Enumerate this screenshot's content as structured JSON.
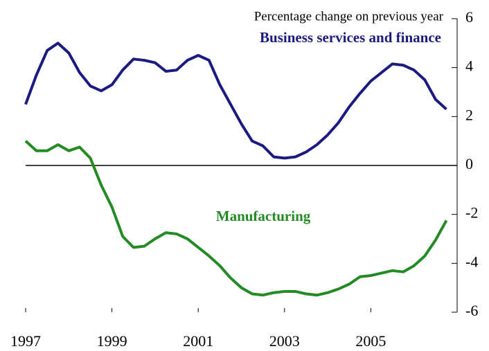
{
  "chart_data": {
    "type": "line",
    "annotations": [
      "Percentage change on previous year"
    ],
    "x": [
      1997,
      1997.25,
      1997.5,
      1997.75,
      1998,
      1998.25,
      1998.5,
      1998.75,
      1999,
      1999.25,
      1999.5,
      1999.75,
      2000,
      2000.25,
      2000.5,
      2000.75,
      2001,
      2001.25,
      2001.5,
      2001.75,
      2002,
      2002.25,
      2002.5,
      2002.75,
      2003,
      2003.25,
      2003.5,
      2003.75,
      2004,
      2004.25,
      2004.5,
      2004.75,
      2005,
      2005.25,
      2005.5,
      2005.75,
      2006,
      2006.25,
      2006.5,
      2006.75
    ],
    "series": [
      {
        "name": "Business services and finance",
        "color": "#1a1a80",
        "values": [
          2.5,
          3.7,
          4.7,
          5.0,
          4.6,
          3.8,
          3.25,
          3.05,
          3.3,
          3.9,
          4.35,
          4.3,
          4.2,
          3.85,
          3.9,
          4.3,
          4.5,
          4.3,
          3.3,
          2.5,
          1.7,
          1.0,
          0.8,
          0.35,
          0.3,
          0.35,
          0.55,
          0.85,
          1.25,
          1.75,
          2.4,
          2.95,
          3.45,
          3.8,
          4.15,
          4.1,
          3.9,
          3.5,
          2.7,
          2.3
        ]
      },
      {
        "name": "Manufacturing",
        "color": "#238b23",
        "values": [
          1.0,
          0.6,
          0.6,
          0.85,
          0.6,
          0.75,
          0.3,
          -0.8,
          -1.7,
          -2.9,
          -3.35,
          -3.3,
          -3.0,
          -2.75,
          -2.8,
          -3.0,
          -3.35,
          -3.7,
          -4.1,
          -4.6,
          -5.0,
          -5.25,
          -5.3,
          -5.2,
          -5.15,
          -5.15,
          -5.25,
          -5.3,
          -5.2,
          -5.05,
          -4.85,
          -4.55,
          -4.5,
          -4.4,
          -4.3,
          -4.35,
          -4.1,
          -3.7,
          -3.05,
          -2.25
        ]
      }
    ],
    "xlim": [
      1997,
      2007
    ],
    "xticks": [
      1997,
      1999,
      2001,
      2003,
      2005
    ],
    "ylim": [
      -6,
      6
    ],
    "yticks": [
      -6,
      -4,
      -2,
      0,
      2,
      4,
      6
    ],
    "grid": false
  }
}
